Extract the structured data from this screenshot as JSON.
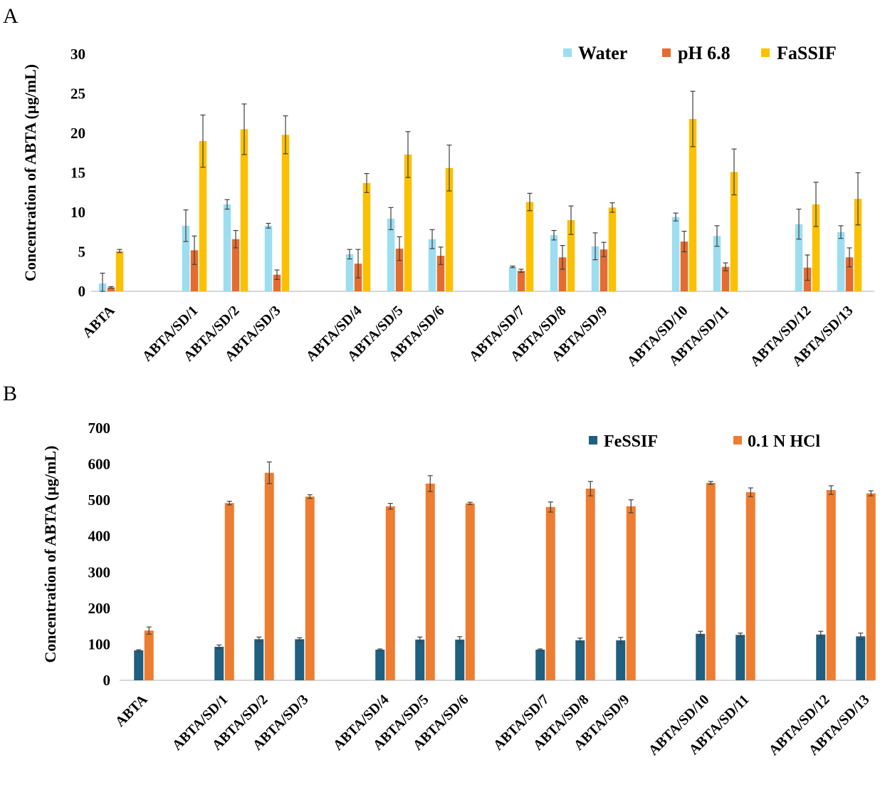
{
  "chart_data": [
    {
      "type": "bar",
      "panel": "A",
      "title": "",
      "xlabel": "",
      "ylabel": "Concentration of ABTA (µg/mL)",
      "ylim": [
        0,
        30
      ],
      "yticks": [
        0,
        5,
        10,
        15,
        20,
        25,
        30
      ],
      "grid": false,
      "legend_position": "top-right",
      "categories": [
        "ABTA",
        "ABTA/SD/1",
        "ABTA/SD/2",
        "ABTA/SD/3",
        "ABTA/SD/4",
        "ABTA/SD/5",
        "ABTA/SD/6",
        "ABTA/SD/7",
        "ABTA/SD/8",
        "ABTA/SD/9",
        "ABTA/SD/10",
        "ABTA/SD/11",
        "ABTA/SD/12",
        "ABTA/SD/13"
      ],
      "series": [
        {
          "name": "Water",
          "color": "#9dddf0",
          "values": [
            1.0,
            8.3,
            11.0,
            8.3,
            4.7,
            9.2,
            6.6,
            3.1,
            7.1,
            5.7,
            9.4,
            7.0,
            8.5,
            7.5
          ],
          "errors": [
            1.3,
            2.0,
            0.6,
            0.3,
            0.6,
            1.4,
            1.2,
            0.1,
            0.6,
            1.7,
            0.5,
            1.3,
            1.9,
            0.8
          ]
        },
        {
          "name": "pH 6.8",
          "color": "#e46c30",
          "values": [
            0.5,
            5.2,
            6.6,
            2.1,
            3.5,
            5.4,
            4.5,
            2.6,
            4.3,
            5.3,
            6.3,
            3.1,
            3.0,
            4.3
          ],
          "errors": [
            0.1,
            1.8,
            1.1,
            0.6,
            1.8,
            1.5,
            1.1,
            0.2,
            1.5,
            0.9,
            1.3,
            0.5,
            1.6,
            1.2
          ]
        },
        {
          "name": "FaSSIF",
          "color": "#fbc000",
          "values": [
            5.1,
            19.0,
            20.5,
            19.8,
            13.7,
            17.3,
            15.6,
            11.3,
            9.0,
            10.6,
            21.8,
            15.1,
            11.0,
            11.7
          ],
          "errors": [
            0.2,
            3.3,
            3.2,
            2.4,
            1.2,
            2.9,
            2.9,
            1.1,
            1.8,
            0.6,
            3.5,
            2.9,
            2.8,
            3.3
          ]
        }
      ]
    },
    {
      "type": "bar",
      "panel": "B",
      "title": "",
      "xlabel": "",
      "ylabel": "Concentration of ABTA (µg/mL)",
      "ylim": [
        0,
        700
      ],
      "yticks": [
        0,
        100,
        200,
        300,
        400,
        500,
        600,
        700
      ],
      "grid": false,
      "legend_position": "top-right",
      "categories": [
        "ABTA",
        "ABTA/SD/1",
        "ABTA/SD/2",
        "ABTA/SD/3",
        "ABTA/SD/4",
        "ABTA/SD/5",
        "ABTA/SD/6",
        "ABTA/SD/7",
        "ABTA/SD/8",
        "ABTA/SD/9",
        "ABTA/SD/10",
        "ABTA/SD/11",
        "ABTA/SD/12",
        "ABTA/SD/13"
      ],
      "series": [
        {
          "name": "FeSSIF",
          "color": "#1f5f80",
          "values": [
            83,
            93,
            114,
            114,
            85,
            113,
            113,
            85,
            111,
            111,
            129,
            126,
            127,
            122
          ],
          "errors": [
            2,
            5,
            6,
            4,
            2,
            7,
            8,
            2,
            6,
            8,
            7,
            5,
            9,
            9
          ]
        },
        {
          "name": "0.1 N HCl",
          "color": "#ed7d31",
          "values": [
            138,
            492,
            576,
            510,
            483,
            546,
            491,
            481,
            532,
            483,
            548,
            522,
            528,
            519
          ],
          "errors": [
            10,
            5,
            30,
            5,
            8,
            22,
            3,
            14,
            20,
            18,
            4,
            12,
            12,
            7
          ]
        }
      ]
    }
  ],
  "panel_a_letter": "A",
  "panel_b_letter": "B"
}
